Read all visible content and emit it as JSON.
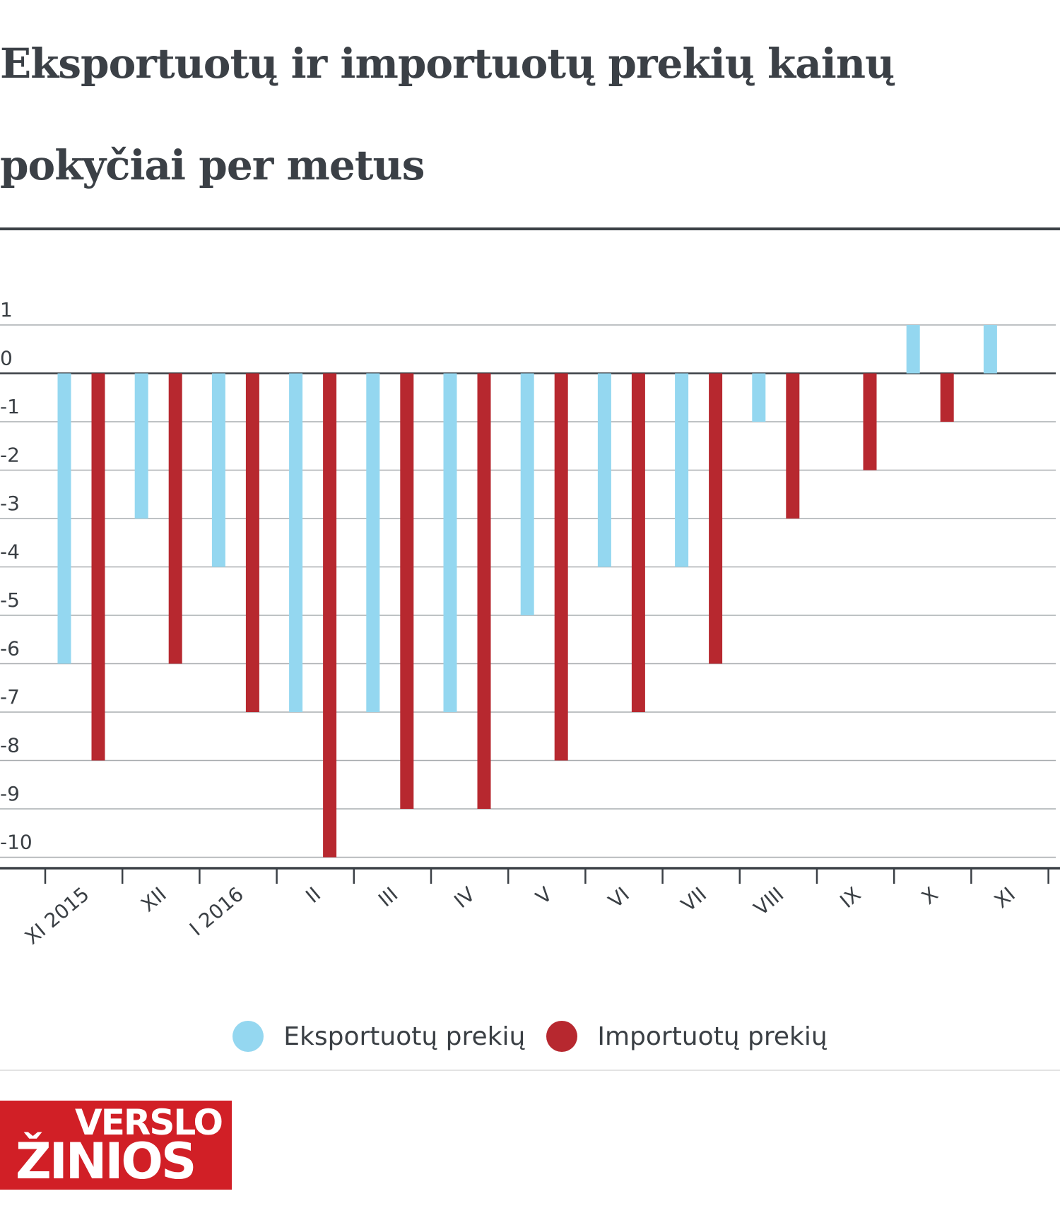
{
  "title": "Eksportuotų ir importuotų prekių kainų pokyčiai per metus",
  "chart_data": {
    "type": "bar",
    "title": "Eksportuotų ir importuotų prekių kainų pokyčiai per metus",
    "xlabel": "",
    "ylabel": "",
    "categories": [
      "XI 2015",
      "XII",
      "I 2016",
      "II",
      "III",
      "IV",
      "V",
      "VI",
      "VII",
      "VIII",
      "IX",
      "X",
      "XI"
    ],
    "series": [
      {
        "name": "Eksportuotų prekių",
        "color": "#94d7f0",
        "values": [
          -6,
          -3,
          -4,
          -7,
          -7,
          -7,
          -5,
          -4,
          -4,
          -1,
          0,
          1,
          1
        ]
      },
      {
        "name": "Importuotų prekių",
        "color": "#b7282f",
        "values": [
          -8,
          -6,
          -7,
          -10,
          -9,
          -9,
          -8,
          -7,
          -6,
          -3,
          -2,
          -1,
          0
        ]
      }
    ],
    "ylim": [
      -10,
      1
    ],
    "yticks": [
      1,
      0,
      -1,
      -2,
      -3,
      -4,
      -5,
      -6,
      -7,
      -8,
      -9,
      -10
    ],
    "ytick_labels": [
      "1",
      "0",
      "-1",
      "-2",
      "-3",
      "-4",
      "-5",
      "-6",
      "-7",
      "-8",
      "-9",
      "-10"
    ],
    "grid": true,
    "legend_position": "bottom"
  },
  "logo": {
    "line1": "VERSLO",
    "line2": "ŽINIOS"
  }
}
